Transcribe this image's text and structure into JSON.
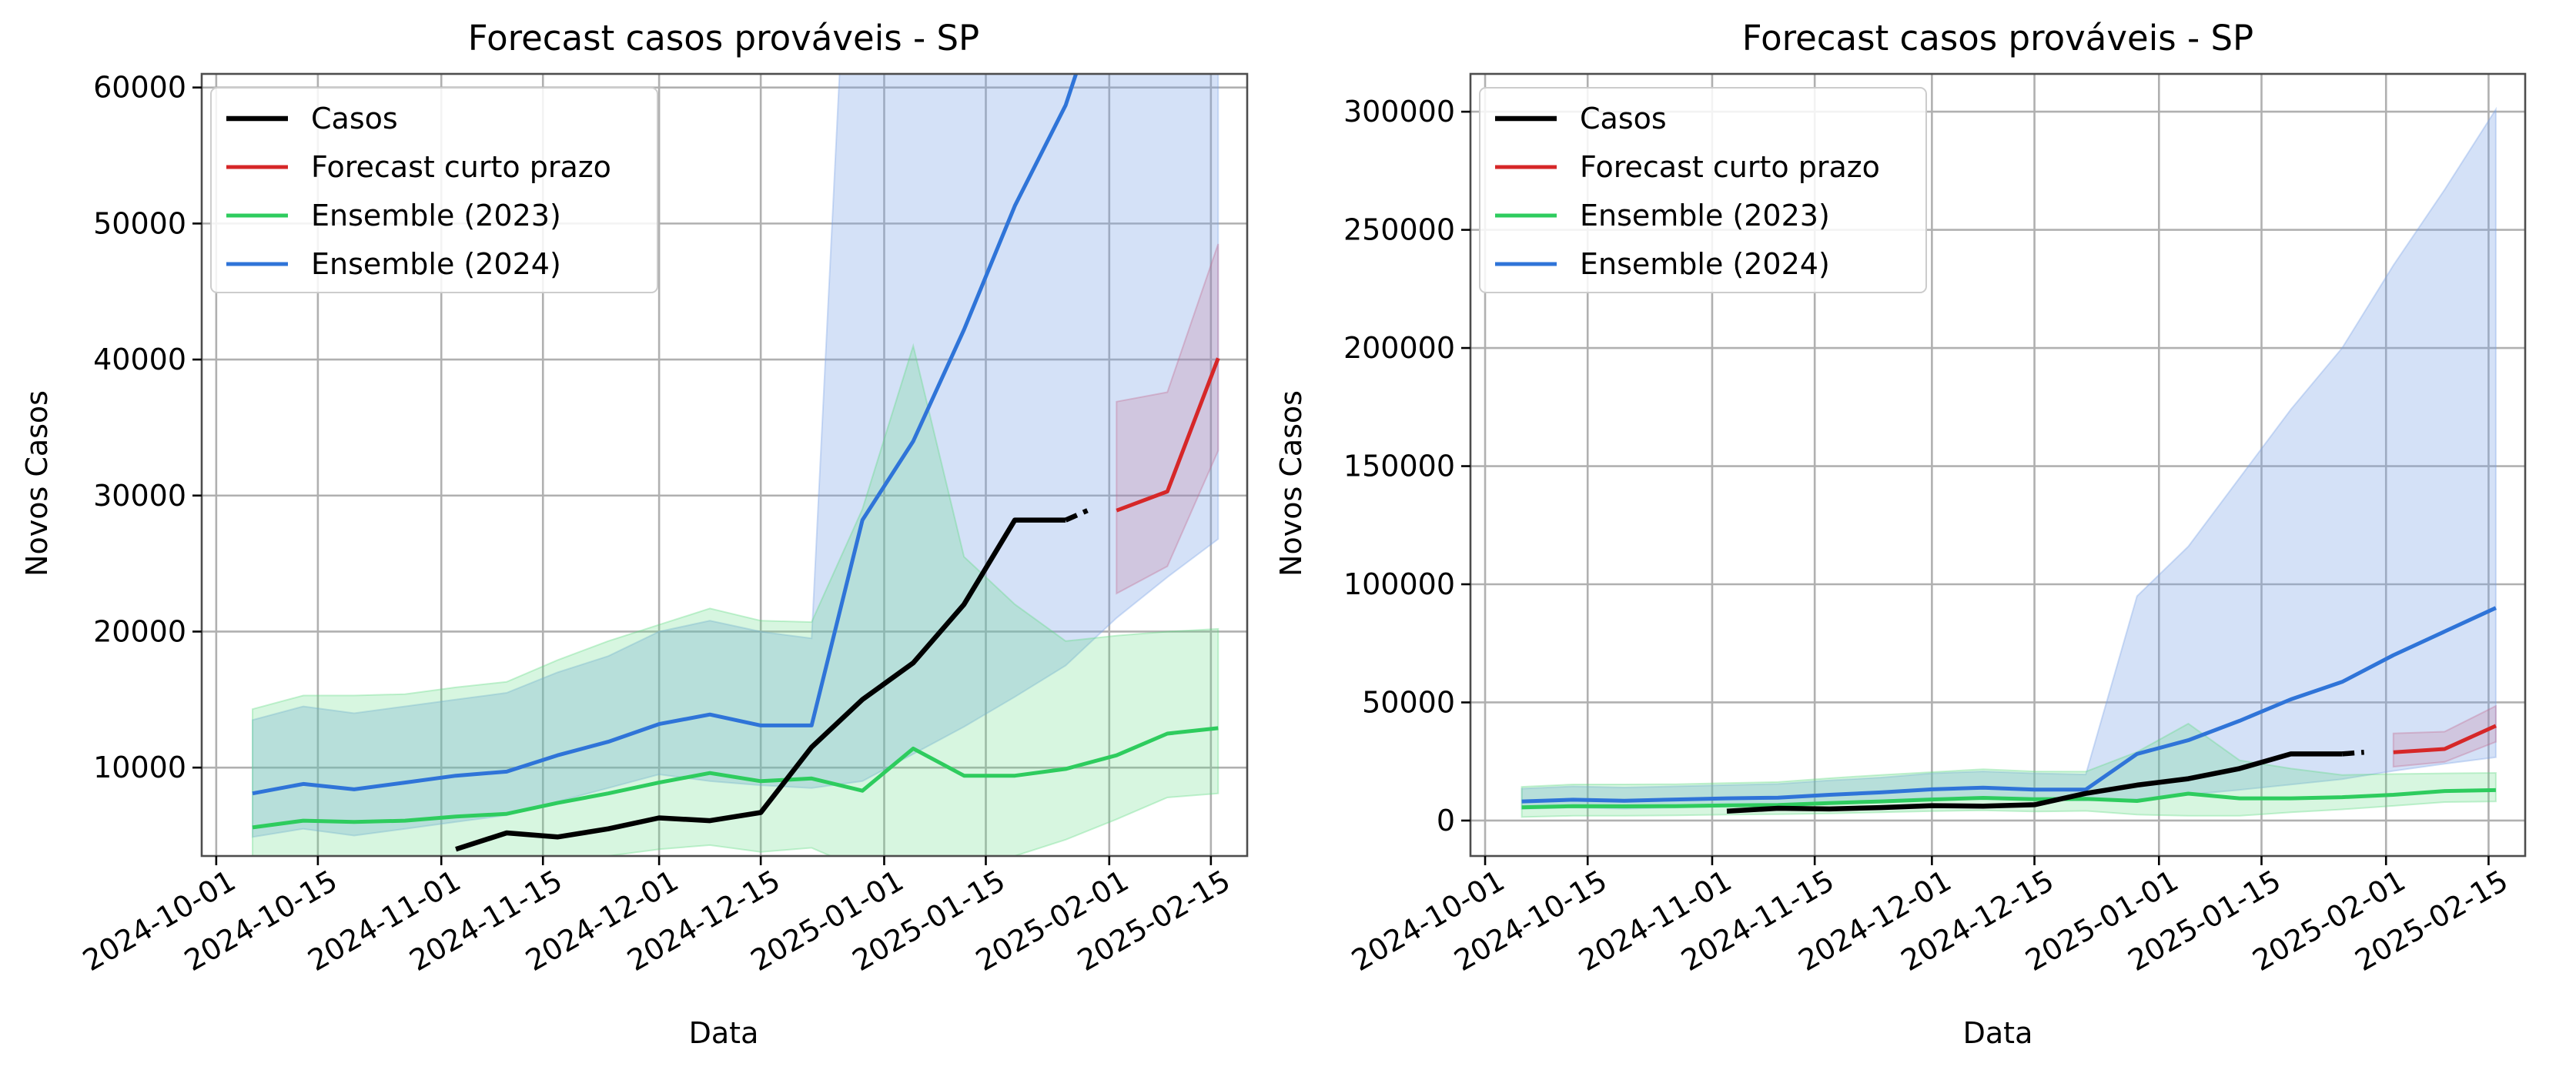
{
  "figure": {
    "title_left": "Forecast casos prováveis - SP",
    "title_right": "Forecast casos prováveis - SP"
  },
  "chart_data": [
    {
      "type": "line",
      "title": "Forecast casos prováveis - SP",
      "xlabel": "Data",
      "ylabel": "Novos Casos",
      "xlim": [
        "2024-09-29",
        "2025-02-20"
      ],
      "ylim": [
        3500,
        61000
      ],
      "x_ticks": [
        "2024-10-01",
        "2024-10-15",
        "2024-11-01",
        "2024-11-15",
        "2024-12-01",
        "2024-12-15",
        "2025-01-01",
        "2025-01-15",
        "2025-02-01",
        "2025-02-15"
      ],
      "y_ticks": [
        10000,
        20000,
        30000,
        40000,
        50000,
        60000
      ],
      "y_tick_labels": [
        "10000",
        "20000",
        "30000",
        "40000",
        "50000",
        "60000"
      ],
      "grid": true,
      "legend_position": "upper-left",
      "legend": [
        "Casos",
        "Forecast curto prazo",
        "Ensemble (2023)",
        "Ensemble (2024)"
      ],
      "colors": {
        "casos": "#000000",
        "forecast": "#d62728",
        "ens2023": "#2ecc5e",
        "ens2024": "#2f74d8"
      },
      "series": {
        "ens2024": {
          "x": [
            "2024-10-06",
            "2024-10-13",
            "2024-10-20",
            "2024-10-27",
            "2024-11-03",
            "2024-11-10",
            "2024-11-17",
            "2024-11-24",
            "2024-12-01",
            "2024-12-08",
            "2024-12-15",
            "2024-12-22",
            "2024-12-29",
            "2025-01-05",
            "2025-01-12",
            "2025-01-19",
            "2025-01-26",
            "2025-02-02",
            "2025-02-09",
            "2025-02-16"
          ],
          "values": [
            8100,
            8800,
            8400,
            8900,
            9400,
            9700,
            10900,
            11900,
            13200,
            13900,
            13100,
            13100,
            28200,
            34000,
            42200,
            51300,
            58700,
            70000,
            80000,
            90000
          ],
          "lower": [
            4900,
            5500,
            5000,
            5500,
            6000,
            6500,
            7500,
            8500,
            9500,
            9000,
            8700,
            8500,
            9000,
            11000,
            13000,
            15200,
            17500,
            21000,
            24000,
            26800
          ],
          "upper": [
            13500,
            14500,
            14000,
            14500,
            15000,
            15500,
            17000,
            18200,
            20000,
            20800,
            20000,
            19500,
            95000,
            116000,
            145000,
            174000,
            200000,
            235000,
            267000,
            301000
          ]
        },
        "ens2023": {
          "x": [
            "2024-10-06",
            "2024-10-13",
            "2024-10-20",
            "2024-10-27",
            "2024-11-03",
            "2024-11-10",
            "2024-11-17",
            "2024-11-24",
            "2024-12-01",
            "2024-12-08",
            "2024-12-15",
            "2024-12-22",
            "2024-12-29",
            "2025-01-05",
            "2025-01-12",
            "2025-01-19",
            "2025-01-26",
            "2025-02-02",
            "2025-02-09",
            "2025-02-16"
          ],
          "values": [
            5600,
            6100,
            6000,
            6100,
            6400,
            6600,
            7400,
            8100,
            8900,
            9600,
            9000,
            9200,
            8300,
            11400,
            9400,
            9400,
            9900,
            10900,
            12500,
            12900
          ],
          "lower": [
            1500,
            2000,
            2000,
            2200,
            2500,
            2700,
            3000,
            3500,
            4000,
            4300,
            3800,
            4100,
            2500,
            2000,
            2000,
            3500,
            4700,
            6200,
            7800,
            8100
          ],
          "upper": [
            14300,
            15300,
            15300,
            15400,
            15900,
            16300,
            17900,
            19300,
            20500,
            21700,
            20800,
            20700,
            29000,
            41000,
            25500,
            22000,
            19300,
            19700,
            20000,
            20200
          ]
        },
        "casos": {
          "x": [
            "2024-11-03",
            "2024-11-10",
            "2024-11-17",
            "2024-11-24",
            "2024-12-01",
            "2024-12-08",
            "2024-12-15",
            "2024-12-22",
            "2024-12-29",
            "2025-01-05",
            "2025-01-12",
            "2025-01-19",
            "2025-01-26"
          ],
          "values": [
            4000,
            5200,
            4900,
            5500,
            6300,
            6100,
            6700,
            11500,
            15000,
            17700,
            22000,
            28200,
            28200
          ]
        },
        "casos_dashed": {
          "x": [
            "2025-01-26",
            "2025-01-29"
          ],
          "values": [
            28200,
            28900
          ]
        },
        "forecast": {
          "x": [
            "2025-02-02",
            "2025-02-09",
            "2025-02-16"
          ],
          "values": [
            28900,
            30300,
            40100
          ],
          "lower": [
            22800,
            24800,
            33300
          ],
          "upper": [
            36900,
            37600,
            48500
          ]
        }
      }
    },
    {
      "type": "line",
      "title": "Forecast casos prováveis - SP",
      "xlabel": "Data",
      "ylabel": "Novos Casos",
      "xlim": [
        "2024-09-29",
        "2025-02-20"
      ],
      "ylim": [
        -15000,
        316000
      ],
      "x_ticks": [
        "2024-10-01",
        "2024-10-15",
        "2024-11-01",
        "2024-11-15",
        "2024-12-01",
        "2024-12-15",
        "2025-01-01",
        "2025-01-15",
        "2025-02-01",
        "2025-02-15"
      ],
      "y_ticks": [
        0,
        50000,
        100000,
        150000,
        200000,
        250000,
        300000
      ],
      "y_tick_labels": [
        "0",
        "50000",
        "100000",
        "150000",
        "200000",
        "250000",
        "300000"
      ],
      "grid": true,
      "legend_position": "upper-left",
      "legend": [
        "Casos",
        "Forecast curto prazo",
        "Ensemble (2023)",
        "Ensemble (2024)"
      ],
      "same_series_as_left_panel": true
    }
  ]
}
